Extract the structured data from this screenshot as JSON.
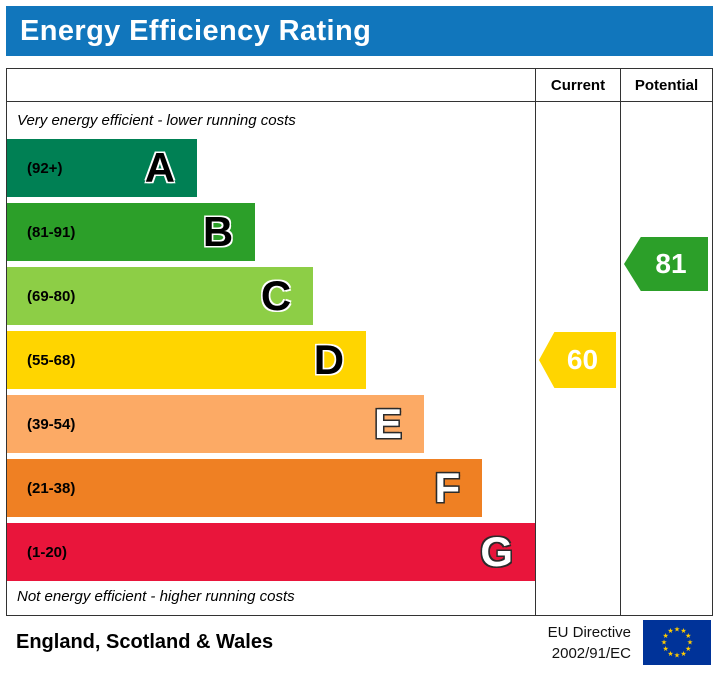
{
  "title_bar": {
    "label": "Energy Efficiency Rating",
    "bg_color": "#1176bc",
    "text_color": "#ffffff"
  },
  "chart_data": {
    "type": "bar",
    "title": "Energy Efficiency Rating",
    "columns": {
      "current": "Current",
      "potential": "Potential"
    },
    "top_note": "Very energy efficient - lower running costs",
    "bottom_note": "Not energy efficient - higher running costs",
    "bands": [
      {
        "letter": "A",
        "range": "(92+)",
        "score_range": [
          92,
          100
        ],
        "color": "#008054",
        "width_pct": 36,
        "letter_style": "dark"
      },
      {
        "letter": "B",
        "range": "(81-91)",
        "score_range": [
          81,
          91
        ],
        "color": "#2c9f29",
        "width_pct": 47,
        "letter_style": "dark"
      },
      {
        "letter": "C",
        "range": "(69-80)",
        "score_range": [
          69,
          80
        ],
        "color": "#8dce46",
        "width_pct": 58,
        "letter_style": "dark"
      },
      {
        "letter": "D",
        "range": "(55-68)",
        "score_range": [
          55,
          68
        ],
        "color": "#ffd500",
        "width_pct": 68,
        "letter_style": "dark"
      },
      {
        "letter": "E",
        "range": "(39-54)",
        "score_range": [
          39,
          54
        ],
        "color": "#fcaa65",
        "width_pct": 79,
        "letter_style": "light"
      },
      {
        "letter": "F",
        "range": "(21-38)",
        "score_range": [
          21,
          38
        ],
        "color": "#ef8023",
        "width_pct": 90,
        "letter_style": "light"
      },
      {
        "letter": "G",
        "range": "(1-20)",
        "score_range": [
          1,
          20
        ],
        "color": "#e9153b",
        "width_pct": 100,
        "letter_style": "light"
      }
    ],
    "current": {
      "value": 60,
      "band": "D",
      "color": "#ffd500"
    },
    "potential": {
      "value": 81,
      "band": "B",
      "color": "#2c9f29"
    }
  },
  "footer": {
    "region": "England, Scotland & Wales",
    "directive_line1": "EU Directive",
    "directive_line2": "2002/91/EC"
  }
}
